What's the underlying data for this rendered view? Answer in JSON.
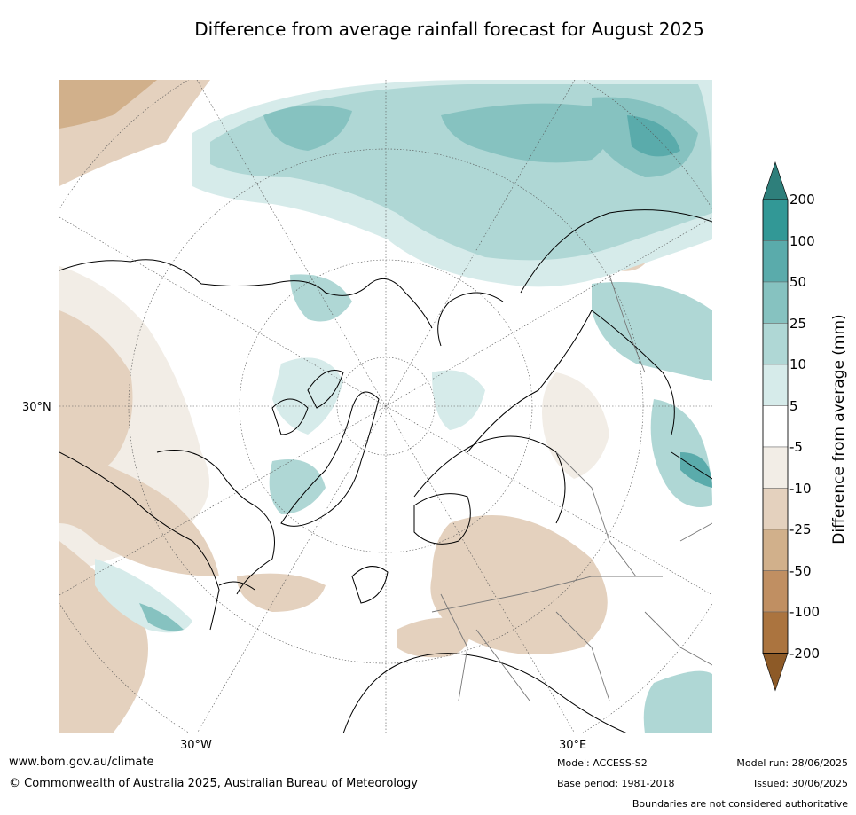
{
  "title": "Difference from average rainfall forecast for August 2025",
  "map": {
    "labels": {
      "lat_30n": "30°N",
      "lon_30w": "30°W",
      "lon_30e": "30°E"
    }
  },
  "colorbar": {
    "label": "Difference from average (mm)",
    "ticks": [
      "200",
      "100",
      "50",
      "25",
      "10",
      "5",
      "-5",
      "-10",
      "-25",
      "-50",
      "-100",
      "-200"
    ],
    "colors": [
      "#2e7f7b",
      "#329896",
      "#5aabab",
      "#86c2c0",
      "#afd7d5",
      "#d6ebea",
      "#ffffff",
      "#f2ede6",
      "#e4d1be",
      "#d1b08b",
      "#c08f62",
      "#ab743f",
      "#8d5a27"
    ]
  },
  "footer": {
    "url": "www.bom.gov.au/climate",
    "copyright": "© Commonwealth of Australia 2025, Australian Bureau of Meteorology",
    "model": "Model: ACCESS-S2",
    "base_period": "Base period: 1981-2018",
    "model_run": "Model run: 28/06/2025",
    "issued": "Issued: 30/06/2025",
    "disclaimer": "Boundaries are not considered authoritative"
  }
}
